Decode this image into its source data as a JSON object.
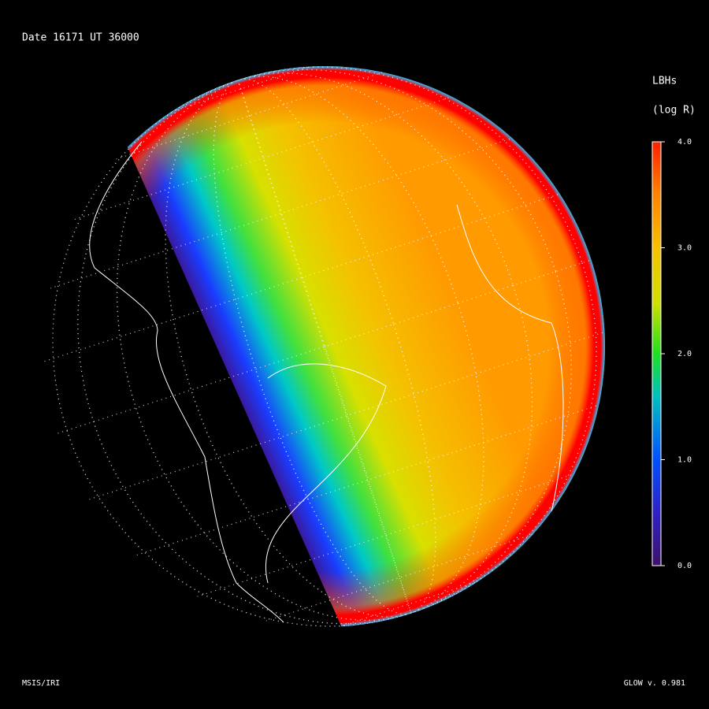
{
  "header": {
    "title": "Date 16171  UT 36000"
  },
  "colorbar": {
    "title": "LBHs",
    "unit": "(log R)",
    "range": [
      0,
      4
    ],
    "ticks": [
      {
        "value": 0,
        "label": "0.0"
      },
      {
        "value": 1,
        "label": "1.0"
      },
      {
        "value": 2,
        "label": "2.0"
      },
      {
        "value": 3,
        "label": "3.0"
      },
      {
        "value": 4,
        "label": "4.0"
      }
    ]
  },
  "footer": {
    "left": "MSIS/IRI",
    "right": "GLOW v. 0.981"
  }
}
